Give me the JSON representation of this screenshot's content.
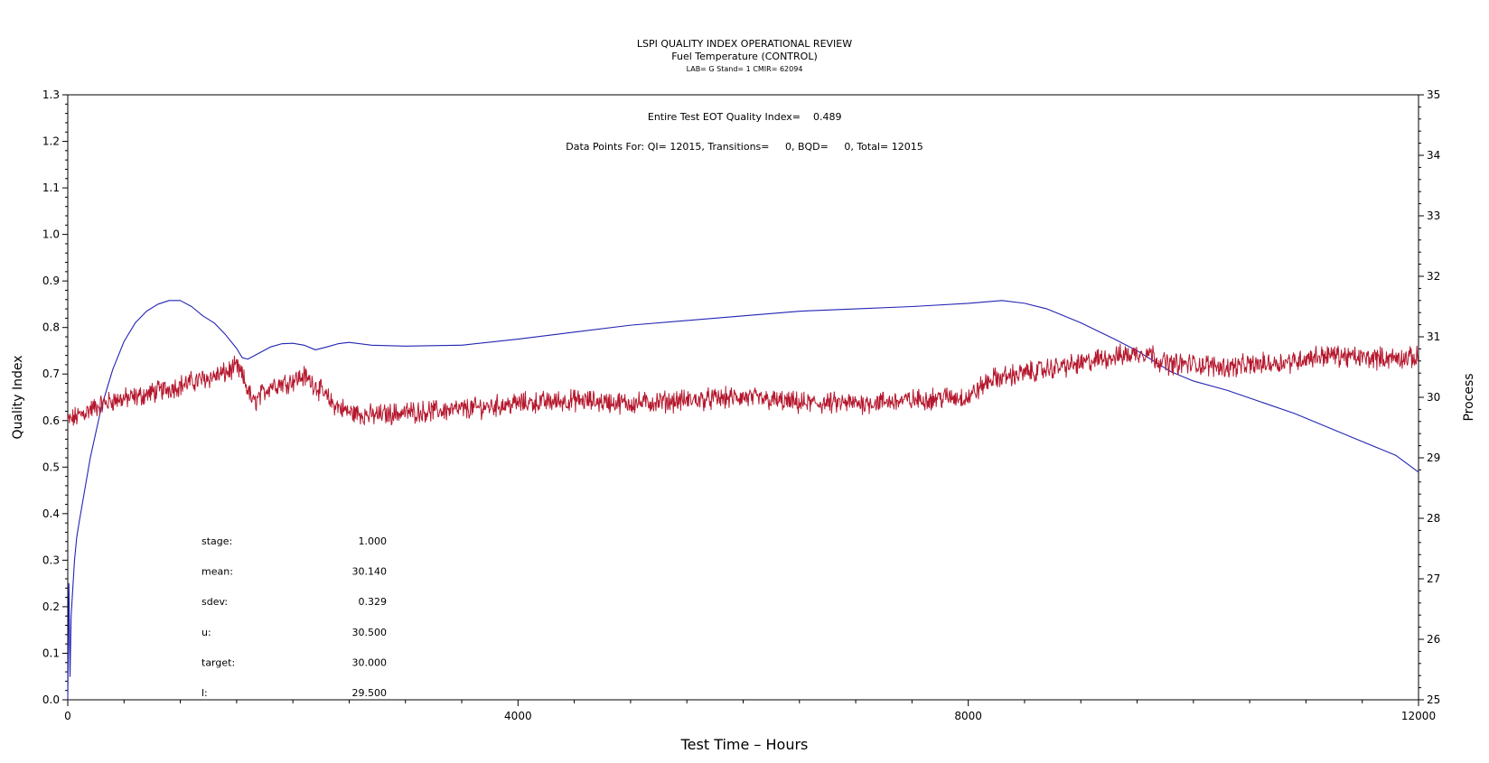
{
  "chart_data": {
    "type": "line",
    "title": "LSPI QUALITY INDEX OPERATIONAL REVIEW",
    "subtitle": "Fuel Temperature (CONTROL)",
    "subsubtitle": "LAB= G Stand= 1 CMIR= 62094",
    "xlabel": "Test Time – Hours",
    "ylabel_left": "Quality Index",
    "ylabel_right": "Process",
    "xlim": [
      0,
      12000
    ],
    "ylim_left": [
      0,
      1.3
    ],
    "ylim_right": [
      25,
      35
    ],
    "x_ticks": [
      "0",
      "4000",
      "8000",
      "12000"
    ],
    "y_left_ticks": [
      "0.0",
      "0.1",
      "0.2",
      "0.3",
      "0.4",
      "0.5",
      "0.6",
      "0.7",
      "0.8",
      "0.9",
      "1.0",
      "1.1",
      "1.2",
      "1.3"
    ],
    "y_right_ticks": [
      "25",
      "26",
      "27",
      "28",
      "29",
      "30",
      "31",
      "32",
      "33",
      "34",
      "35"
    ],
    "annotations": {
      "qi_label": "Entire Test EOT Quality Index=",
      "qi_value": "0.489",
      "points_line": "Data Points For: QI= 12015, Transitions=     0, BQD=     0, Total= 12015"
    },
    "stats": [
      {
        "label": "stage:",
        "value": "1.000"
      },
      {
        "label": "mean:",
        "value": "30.140"
      },
      {
        "label": "sdev:",
        "value": "0.329"
      },
      {
        "label": "u:",
        "value": "30.500"
      },
      {
        "label": "target:",
        "value": "30.000"
      },
      {
        "label": "l:",
        "value": "29.500"
      }
    ],
    "series": [
      {
        "axis": "left",
        "color": "#2323b4",
        "x": [
          0,
          10,
          20,
          30,
          40,
          60,
          80,
          100,
          150,
          200,
          300,
          400,
          500,
          600,
          700,
          800,
          900,
          1000,
          1100,
          1200,
          1300,
          1400,
          1500,
          1550,
          1600,
          1700,
          1800,
          1900,
          2000,
          2100,
          2200,
          2300,
          2400,
          2500,
          2700,
          3000,
          3500,
          4000,
          4500,
          5000,
          5500,
          6000,
          6500,
          7000,
          7500,
          8000,
          8300,
          8500,
          8700,
          9000,
          9300,
          9500,
          9700,
          9800,
          10000,
          10300,
          10600,
          10900,
          11200,
          11500,
          11800,
          12000
        ],
        "y": [
          0.0,
          0.25,
          0.05,
          0.18,
          0.22,
          0.3,
          0.35,
          0.38,
          0.45,
          0.52,
          0.63,
          0.71,
          0.77,
          0.81,
          0.835,
          0.85,
          0.858,
          0.858,
          0.845,
          0.825,
          0.81,
          0.785,
          0.755,
          0.735,
          0.732,
          0.745,
          0.758,
          0.765,
          0.766,
          0.762,
          0.752,
          0.758,
          0.765,
          0.768,
          0.762,
          0.76,
          0.762,
          0.775,
          0.79,
          0.805,
          0.815,
          0.825,
          0.835,
          0.84,
          0.845,
          0.852,
          0.858,
          0.852,
          0.84,
          0.81,
          0.775,
          0.75,
          0.72,
          0.705,
          0.685,
          0.665,
          0.64,
          0.615,
          0.585,
          0.555,
          0.525,
          0.489
        ]
      },
      {
        "axis": "right",
        "color": "#b5172d",
        "x": [
          0,
          200,
          400,
          600,
          800,
          1000,
          1200,
          1400,
          1500,
          1550,
          1650,
          1800,
          1950,
          2100,
          2200,
          2350,
          2500,
          2700,
          3000,
          3500,
          4000,
          4500,
          5000,
          5500,
          6000,
          6500,
          7000,
          7500,
          7800,
          8000,
          8200,
          8500,
          8800,
          9000,
          9200,
          9400,
          9600,
          9700,
          9800,
          10000,
          10300,
          10600,
          10900,
          11000,
          11200,
          11500,
          11800,
          12000
        ],
        "y": [
          29.6,
          29.8,
          29.95,
          30.0,
          30.1,
          30.2,
          30.3,
          30.4,
          30.5,
          30.35,
          29.9,
          30.2,
          30.25,
          30.35,
          30.2,
          29.9,
          29.75,
          29.7,
          29.75,
          29.8,
          29.9,
          29.95,
          29.9,
          29.95,
          30.0,
          29.9,
          29.9,
          29.95,
          30.0,
          30.0,
          30.3,
          30.4,
          30.5,
          30.55,
          30.65,
          30.7,
          30.75,
          30.6,
          30.55,
          30.55,
          30.5,
          30.55,
          30.6,
          30.65,
          30.7,
          30.65,
          30.65,
          30.65
        ]
      }
    ]
  }
}
